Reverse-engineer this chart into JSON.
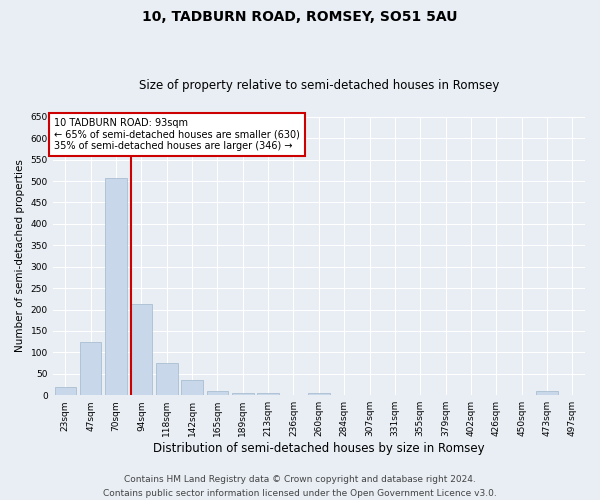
{
  "title": "10, TADBURN ROAD, ROMSEY, SO51 5AU",
  "subtitle": "Size of property relative to semi-detached houses in Romsey",
  "xlabel": "Distribution of semi-detached houses by size in Romsey",
  "ylabel": "Number of semi-detached properties",
  "categories": [
    "23sqm",
    "47sqm",
    "70sqm",
    "94sqm",
    "118sqm",
    "142sqm",
    "165sqm",
    "189sqm",
    "213sqm",
    "236sqm",
    "260sqm",
    "284sqm",
    "307sqm",
    "331sqm",
    "355sqm",
    "379sqm",
    "402sqm",
    "426sqm",
    "450sqm",
    "473sqm",
    "497sqm"
  ],
  "values": [
    20,
    125,
    507,
    213,
    75,
    35,
    10,
    5,
    5,
    0,
    5,
    0,
    0,
    0,
    0,
    0,
    0,
    0,
    0,
    10,
    0
  ],
  "bar_color": "#c8d8ea",
  "bar_edge_color": "#a0b8cc",
  "highlight_index": 3,
  "highlight_line_color": "#cc0000",
  "annotation_text": "10 TADBURN ROAD: 93sqm\n← 65% of semi-detached houses are smaller (630)\n35% of semi-detached houses are larger (346) →",
  "annotation_box_color": "#ffffff",
  "annotation_box_edge_color": "#cc0000",
  "ylim": [
    0,
    650
  ],
  "yticks": [
    0,
    50,
    100,
    150,
    200,
    250,
    300,
    350,
    400,
    450,
    500,
    550,
    600,
    650
  ],
  "footer_line1": "Contains HM Land Registry data © Crown copyright and database right 2024.",
  "footer_line2": "Contains public sector information licensed under the Open Government Licence v3.0.",
  "background_color": "#e8eef4",
  "plot_background_color": "#e8eef4",
  "grid_color": "#ffffff",
  "title_fontsize": 10,
  "subtitle_fontsize": 8.5,
  "xlabel_fontsize": 8.5,
  "ylabel_fontsize": 7.5,
  "tick_fontsize": 6.5,
  "annotation_fontsize": 7,
  "footer_fontsize": 6.5
}
